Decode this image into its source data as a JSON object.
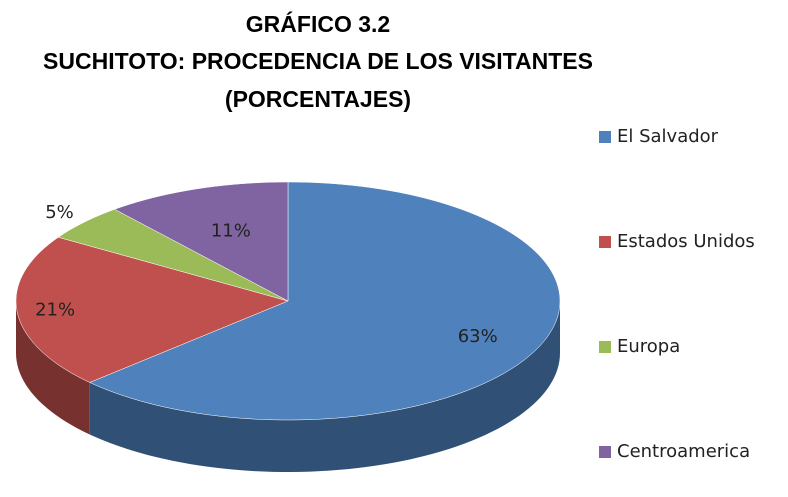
{
  "chart_data": {
    "type": "pie",
    "title": [
      "GRÁFICO 3.2",
      "SUCHITOTO: PROCEDENCIA DE LOS VISITANTES",
      "(PORCENTAJES)"
    ],
    "categories": [
      "El Salvador",
      "Estados Unidos",
      "Europa",
      "Centroamerica"
    ],
    "values": [
      63,
      21,
      5,
      11
    ],
    "value_labels": [
      "63%",
      "21%",
      "5%",
      "11%"
    ],
    "colors": [
      "#4f81bd",
      "#c0504d",
      "#9bbb59",
      "#8064a2"
    ],
    "legend": "right"
  }
}
